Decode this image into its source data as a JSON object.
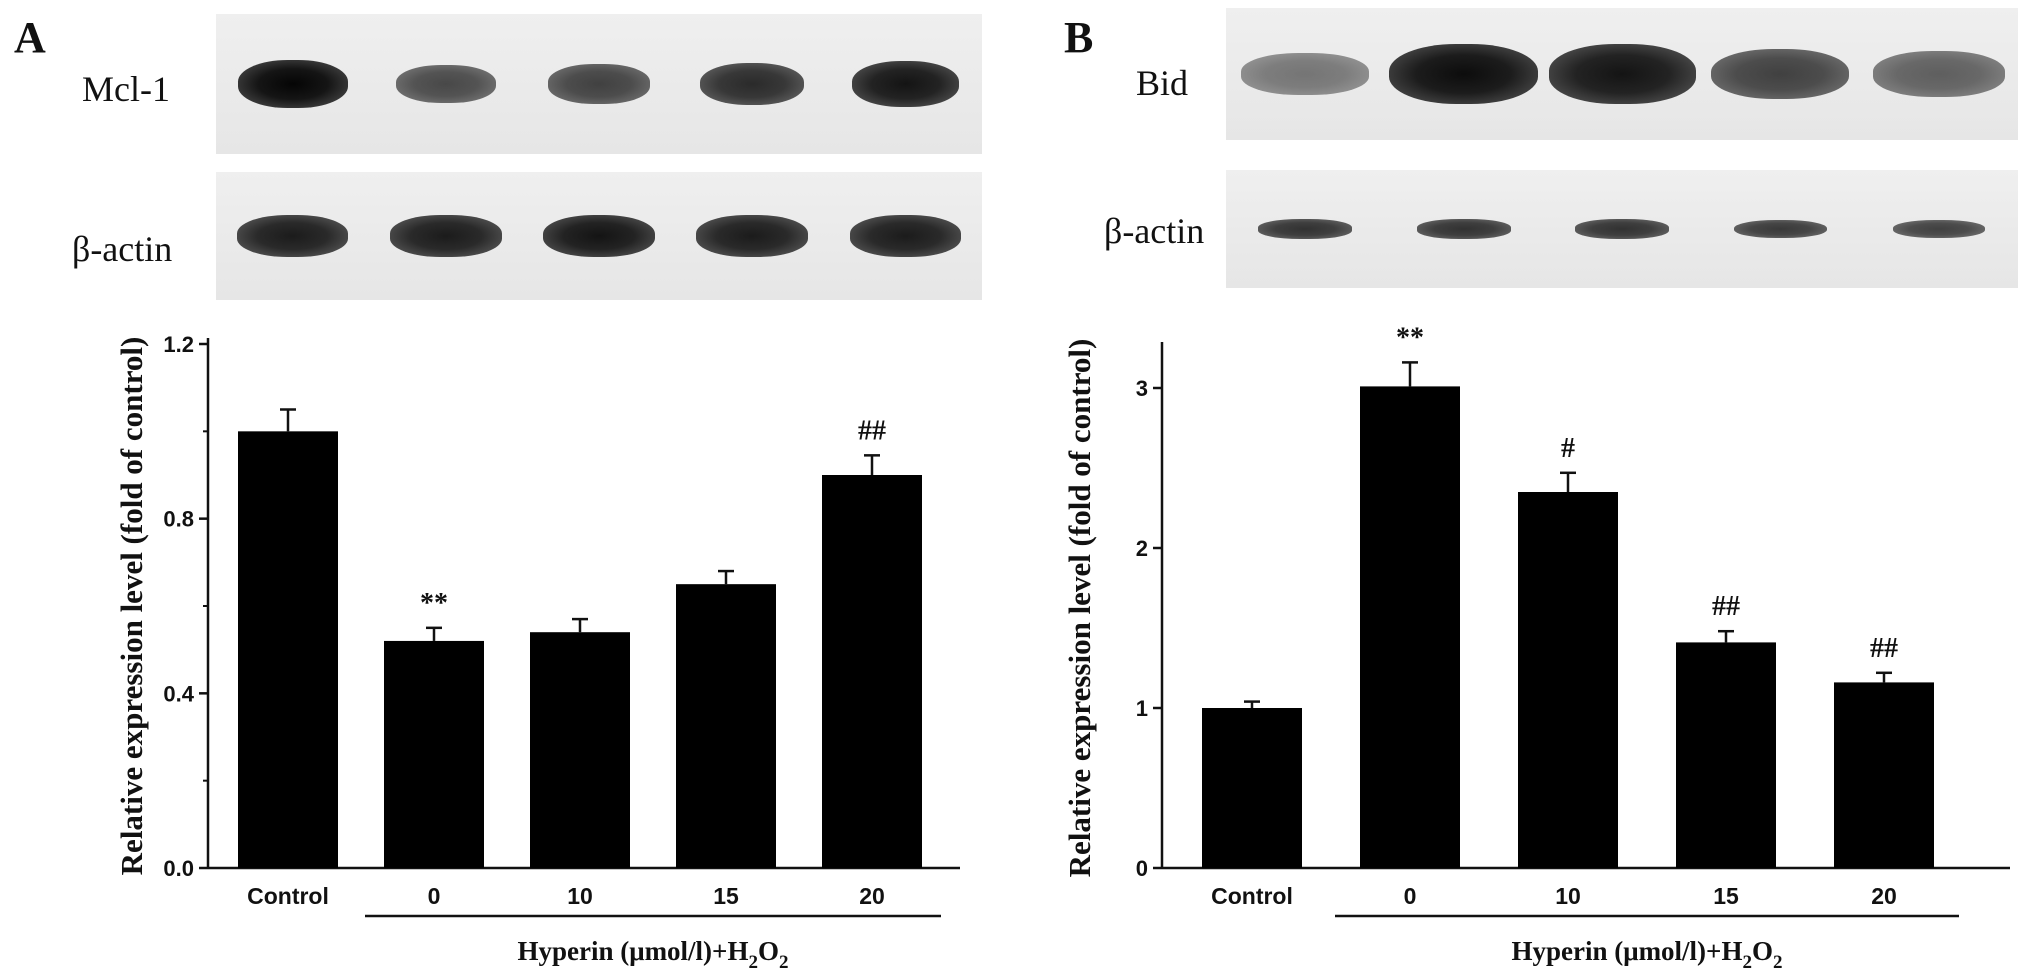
{
  "figure": {
    "panels": [
      {
        "label": "A",
        "blots": [
          {
            "label": "Mcl-1",
            "intensity": [
              1.0,
              0.55,
              0.6,
              0.75,
              0.9
            ]
          },
          {
            "label": "β-actin",
            "intensity": [
              0.85,
              0.85,
              0.9,
              0.85,
              0.85
            ]
          }
        ]
      },
      {
        "label": "B",
        "blots": [
          {
            "label": "Bid",
            "intensity": [
              0.25,
              0.95,
              0.9,
              0.6,
              0.4
            ]
          },
          {
            "label": "β-actin",
            "intensity": [
              0.7,
              0.7,
              0.7,
              0.65,
              0.6
            ]
          }
        ]
      }
    ]
  },
  "chart_data": [
    {
      "type": "bar",
      "panel": "A",
      "categories": [
        "Control",
        "0",
        "10",
        "15",
        "20"
      ],
      "values": [
        1.0,
        0.52,
        0.54,
        0.65,
        0.9
      ],
      "errors": [
        0.05,
        0.03,
        0.03,
        0.03,
        0.045
      ],
      "annotations": [
        "",
        "**",
        "",
        "",
        "##"
      ],
      "ylabel": "Relative expression level (fold of control)",
      "xlabel": {
        "main": "Hyperin (μmol/l)+H",
        "sub1": "2",
        "mid": "O",
        "sub2": "2"
      },
      "ylim": [
        0,
        1.2
      ],
      "yticks": [
        "0.0",
        "0.4",
        "0.8",
        "1.2"
      ],
      "ytick_values": [
        0,
        0.4,
        0.8,
        1.2
      ],
      "bar_color": "#000000"
    },
    {
      "type": "bar",
      "panel": "B",
      "categories": [
        "Control",
        "0",
        "10",
        "15",
        "20"
      ],
      "values": [
        1.0,
        3.01,
        2.35,
        1.41,
        1.16
      ],
      "errors": [
        0.04,
        0.15,
        0.12,
        0.07,
        0.06
      ],
      "annotations": [
        "",
        "**",
        "#",
        "##",
        "##"
      ],
      "ylabel": "Relative expression level (fold of control)",
      "xlabel": {
        "main": "Hyperin (μmol/l)+H",
        "sub1": "2",
        "mid": "O",
        "sub2": "2"
      },
      "ylim": [
        0,
        3.25
      ],
      "yticks": [
        "0",
        "1",
        "2",
        "3"
      ],
      "ytick_values": [
        0,
        1,
        2,
        3
      ],
      "bar_color": "#000000"
    }
  ]
}
